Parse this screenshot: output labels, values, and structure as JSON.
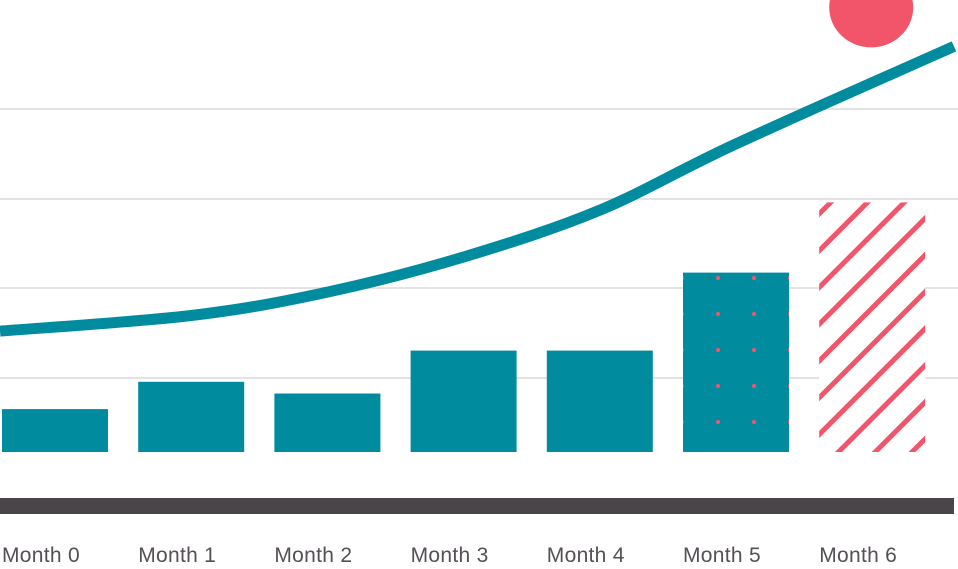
{
  "chart_data": {
    "type": "bar",
    "title": "",
    "xlabel": "",
    "ylabel": "",
    "categories": [
      "Month 0",
      "Month 1",
      "Month 2",
      "Month 3",
      "Month 4",
      "Month 5",
      "Month 6"
    ],
    "values": [
      0.11,
      0.18,
      0.15,
      0.26,
      0.26,
      0.46,
      0.64
    ],
    "ylim": [
      0,
      1
    ],
    "grid": true,
    "series": [
      {
        "values": [
          0.11,
          0.18,
          0.15,
          0.26,
          0.26,
          0.46,
          0.64
        ]
      }
    ],
    "trend_line": {
      "type": "exponential-curve",
      "values": [
        0.31,
        0.35,
        0.41,
        0.5,
        0.62,
        0.79,
        1.04
      ]
    },
    "highlight_marker": {
      "category": "Month 6",
      "value": 1.14,
      "shape": "circle"
    },
    "bar_styles": [
      "solid",
      "solid",
      "solid",
      "solid",
      "solid",
      "dotted",
      "hatched"
    ],
    "colors": {
      "bar": "#008C9E",
      "line": "#008C9E",
      "accent": "#F2546A",
      "grid": "#E4E2E4",
      "baseline": "#4A4548",
      "tick_label": "#555055"
    }
  }
}
